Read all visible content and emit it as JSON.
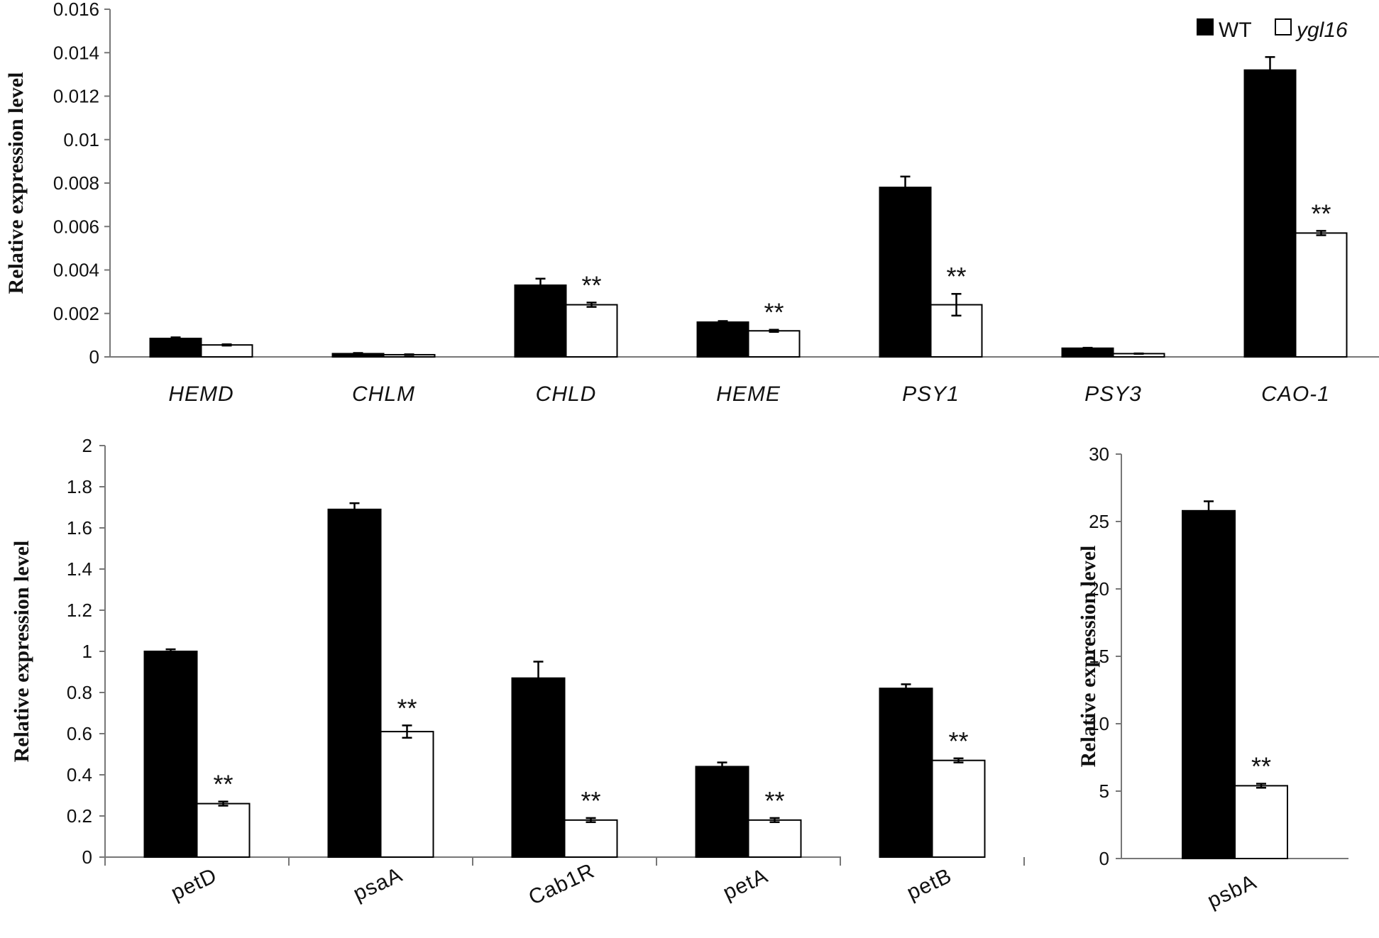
{
  "chart_data": [
    {
      "type": "bar",
      "ylabel": "Relative expression level",
      "ylim": [
        0,
        0.016
      ],
      "yticks": [
        "0",
        "0.002",
        "0.004",
        "0.006",
        "0.008",
        "0.01",
        "0.012",
        "0.014",
        "0.016"
      ],
      "categories": [
        "HEMD",
        "CHLM",
        "CHLD",
        "HEME",
        "PSY1",
        "PSY3",
        "CAO-1"
      ],
      "series": [
        {
          "name": "WT",
          "color": "#000000",
          "values": [
            0.00085,
            0.00015,
            0.0033,
            0.0016,
            0.0078,
            0.0004,
            0.0132
          ],
          "errors": [
            5e-05,
            3e-05,
            0.0003,
            5e-05,
            0.0005,
            2e-05,
            0.0006
          ]
        },
        {
          "name": "ygl16",
          "color": "#ffffff",
          "values": [
            0.00055,
            0.0001,
            0.0024,
            0.0012,
            0.0024,
            0.00015,
            0.0057
          ],
          "errors": [
            3e-05,
            2e-05,
            0.0001,
            5e-05,
            0.0005,
            1e-05,
            0.0001
          ]
        }
      ],
      "significance": [
        "",
        "",
        "**",
        "**",
        "**",
        "",
        "**"
      ],
      "legend": [
        {
          "label": "WT",
          "fill": "#000000"
        },
        {
          "label": "ygl16",
          "fill": "#ffffff"
        }
      ],
      "italic_categories": true
    },
    {
      "type": "bar",
      "ylabel": "Relative expression level",
      "ylim": [
        0,
        2
      ],
      "yticks": [
        "0",
        "0.2",
        "0.4",
        "0.6",
        "0.8",
        "1",
        "1.2",
        "1.4",
        "1.6",
        "1.8",
        "2"
      ],
      "categories": [
        "petD",
        "psaA",
        "Cab1R",
        "petA",
        "petB"
      ],
      "series": [
        {
          "name": "WT",
          "color": "#000000",
          "values": [
            1.0,
            1.69,
            0.87,
            0.44,
            0.82
          ],
          "errors": [
            0.01,
            0.03,
            0.08,
            0.02,
            0.02
          ]
        },
        {
          "name": "ygl16",
          "color": "#ffffff",
          "values": [
            0.26,
            0.61,
            0.18,
            0.18,
            0.47
          ],
          "errors": [
            0.01,
            0.03,
            0.01,
            0.01,
            0.01
          ]
        }
      ],
      "significance": [
        "**",
        "**",
        "**",
        "**",
        "**"
      ],
      "italic_categories": false
    },
    {
      "type": "bar",
      "ylabel": "Relative expression level",
      "ylim": [
        0,
        30
      ],
      "yticks": [
        "0",
        "5",
        "10",
        "15",
        "20",
        "25",
        "30"
      ],
      "categories": [
        "psbA"
      ],
      "series": [
        {
          "name": "WT",
          "color": "#000000",
          "values": [
            25.8
          ],
          "errors": [
            0.7
          ]
        },
        {
          "name": "ygl16",
          "color": "#ffffff",
          "values": [
            5.4
          ],
          "errors": [
            0.15
          ]
        }
      ],
      "significance": [
        "**"
      ],
      "italic_categories": false
    }
  ]
}
